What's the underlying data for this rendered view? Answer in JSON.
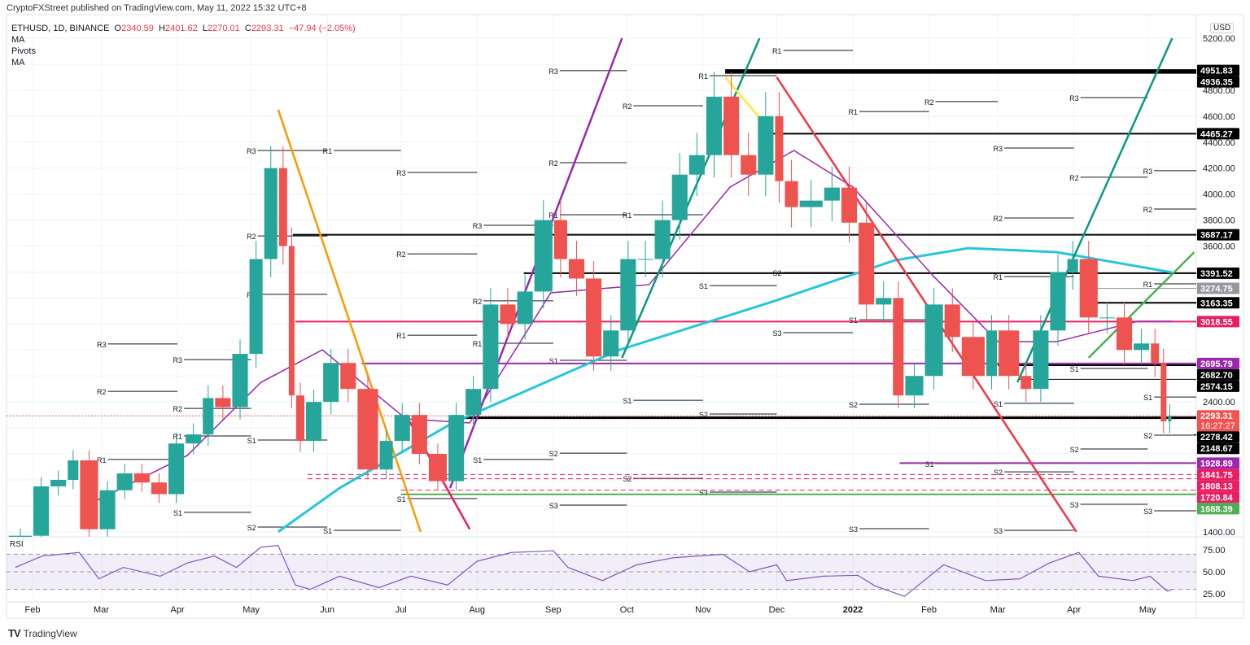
{
  "header": {
    "publisher": "CryptoFXStreet published on TradingView.com, May 11, 2022 15:32 UTC+8"
  },
  "legend": {
    "symbol": "ETHUSD, 1D, BINANCE",
    "open_label": "O",
    "open": "2340.59",
    "high_label": "H",
    "high": "2401.62",
    "low_label": "L",
    "low": "2270.01",
    "close_label": "C",
    "close": "2293.31",
    "change": "−47.94 (−2.05%)",
    "indicators": [
      "MA",
      "Pivots",
      "MA"
    ]
  },
  "axis": {
    "currency": "USD",
    "countdown": "16:27:27"
  },
  "rsi": {
    "title": "RSI",
    "ticks": [
      "75.00",
      "50.00",
      "25.00"
    ],
    "levels": [
      70,
      50,
      30
    ],
    "values": [
      [
        "2021-01-25",
        55
      ],
      [
        "2021-02-05",
        68
      ],
      [
        "2021-02-20",
        72
      ],
      [
        "2021-02-28",
        42
      ],
      [
        "2021-03-10",
        55
      ],
      [
        "2021-03-25",
        45
      ],
      [
        "2021-04-05",
        60
      ],
      [
        "2021-04-16",
        68
      ],
      [
        "2021-04-25",
        55
      ],
      [
        "2021-05-05",
        78
      ],
      [
        "2021-05-12",
        80
      ],
      [
        "2021-05-19",
        35
      ],
      [
        "2021-05-25",
        30
      ],
      [
        "2021-06-06",
        45
      ],
      [
        "2021-06-22",
        32
      ],
      [
        "2021-07-05",
        45
      ],
      [
        "2021-07-20",
        35
      ],
      [
        "2021-08-01",
        62
      ],
      [
        "2021-08-15",
        72
      ],
      [
        "2021-09-01",
        74
      ],
      [
        "2021-09-07",
        55
      ],
      [
        "2021-09-21",
        40
      ],
      [
        "2021-10-05",
        58
      ],
      [
        "2021-10-20",
        66
      ],
      [
        "2021-11-09",
        70
      ],
      [
        "2021-11-20",
        50
      ],
      [
        "2021-12-01",
        58
      ],
      [
        "2021-12-05",
        40
      ],
      [
        "2021-12-20",
        45
      ],
      [
        "2022-01-03",
        46
      ],
      [
        "2022-01-10",
        34
      ],
      [
        "2022-01-22",
        22
      ],
      [
        "2022-02-07",
        58
      ],
      [
        "2022-02-24",
        40
      ],
      [
        "2022-03-10",
        42
      ],
      [
        "2022-03-22",
        60
      ],
      [
        "2022-04-03",
        72
      ],
      [
        "2022-04-11",
        45
      ],
      [
        "2022-04-25",
        40
      ],
      [
        "2022-05-02",
        45
      ],
      [
        "2022-05-09",
        28
      ],
      [
        "2022-05-11",
        30
      ]
    ]
  },
  "footer": {
    "brand": "TradingView"
  },
  "colors": {
    "up": "#26a69a",
    "down": "#ef5350",
    "ma_fast": "#9c27b0",
    "ma_slow": "#26c6da",
    "background": "#ffffff"
  },
  "chart_data": {
    "type": "line",
    "title": "",
    "ylim": [
      1400,
      5200
    ],
    "y_ticks": [
      "5200.00",
      "4800.00",
      "4600.00",
      "4400.00",
      "4200.00",
      "4000.00",
      "3800.00",
      "3600.00",
      "2400.00",
      "1400.00"
    ],
    "x_ticks": [
      [
        "Feb",
        "2021-02-01"
      ],
      [
        "Mar",
        "2021-03-01"
      ],
      [
        "Apr",
        "2021-04-01"
      ],
      [
        "May",
        "2021-05-01"
      ],
      [
        "Jun",
        "2021-06-01"
      ],
      [
        "Jul",
        "2021-07-01"
      ],
      [
        "Aug",
        "2021-08-01"
      ],
      [
        "Sep",
        "2021-09-01"
      ],
      [
        "Oct",
        "2021-10-01"
      ],
      [
        "Nov",
        "2021-11-01"
      ],
      [
        "Dec",
        "2021-12-01"
      ],
      [
        "2022",
        "2022-01-01"
      ],
      [
        "Feb",
        "2022-02-01"
      ],
      [
        "Mar",
        "2022-03-01"
      ],
      [
        "Apr",
        "2022-04-01"
      ],
      [
        "May",
        "2022-05-01"
      ]
    ],
    "grid": true,
    "price": [
      [
        "2021-01-22",
        1250
      ],
      [
        "2021-02-01",
        1370
      ],
      [
        "2021-02-08",
        1750
      ],
      [
        "2021-02-15",
        1800
      ],
      [
        "2021-02-20",
        1950
      ],
      [
        "2021-02-28",
        1420
      ],
      [
        "2021-03-07",
        1720
      ],
      [
        "2021-03-14",
        1850
      ],
      [
        "2021-03-21",
        1780
      ],
      [
        "2021-03-28",
        1690
      ],
      [
        "2021-04-04",
        2080
      ],
      [
        "2021-04-11",
        2150
      ],
      [
        "2021-04-16",
        2430
      ],
      [
        "2021-04-23",
        2360
      ],
      [
        "2021-04-30",
        2770
      ],
      [
        "2021-05-06",
        3500
      ],
      [
        "2021-05-12",
        4200
      ],
      [
        "2021-05-16",
        3600
      ],
      [
        "2021-05-19",
        2450
      ],
      [
        "2021-05-23",
        2100
      ],
      [
        "2021-05-30",
        2400
      ],
      [
        "2021-06-06",
        2700
      ],
      [
        "2021-06-13",
        2500
      ],
      [
        "2021-06-22",
        1880
      ],
      [
        "2021-06-28",
        2100
      ],
      [
        "2021-07-05",
        2300
      ],
      [
        "2021-07-12",
        2000
      ],
      [
        "2021-07-20",
        1790
      ],
      [
        "2021-07-27",
        2300
      ],
      [
        "2021-08-03",
        2500
      ],
      [
        "2021-08-10",
        3150
      ],
      [
        "2021-08-17",
        3000
      ],
      [
        "2021-08-24",
        3250
      ],
      [
        "2021-09-01",
        3800
      ],
      [
        "2021-09-07",
        3500
      ],
      [
        "2021-09-14",
        3350
      ],
      [
        "2021-09-21",
        2750
      ],
      [
        "2021-09-28",
        2950
      ],
      [
        "2021-10-05",
        3500
      ],
      [
        "2021-10-12",
        3500
      ],
      [
        "2021-10-19",
        3800
      ],
      [
        "2021-10-26",
        4150
      ],
      [
        "2021-11-02",
        4300
      ],
      [
        "2021-11-09",
        4750
      ],
      [
        "2021-11-16",
        4300
      ],
      [
        "2021-11-23",
        4150
      ],
      [
        "2021-11-30",
        4600
      ],
      [
        "2021-12-04",
        4100
      ],
      [
        "2021-12-10",
        3900
      ],
      [
        "2021-12-20",
        3950
      ],
      [
        "2021-12-27",
        4050
      ],
      [
        "2022-01-03",
        3780
      ],
      [
        "2022-01-10",
        3150
      ],
      [
        "2022-01-17",
        3200
      ],
      [
        "2022-01-22",
        2450
      ],
      [
        "2022-01-30",
        2600
      ],
      [
        "2022-02-07",
        3150
      ],
      [
        "2022-02-14",
        2900
      ],
      [
        "2022-02-24",
        2600
      ],
      [
        "2022-03-01",
        2950
      ],
      [
        "2022-03-10",
        2600
      ],
      [
        "2022-03-15",
        2500
      ],
      [
        "2022-03-22",
        2950
      ],
      [
        "2022-03-29",
        3400
      ],
      [
        "2022-04-03",
        3500
      ],
      [
        "2022-04-11",
        3050
      ],
      [
        "2022-04-18",
        3050
      ],
      [
        "2022-04-25",
        2800
      ],
      [
        "2022-05-02",
        2850
      ],
      [
        "2022-05-06",
        2700
      ],
      [
        "2022-05-09",
        2250
      ],
      [
        "2022-05-11",
        2293.31
      ]
    ],
    "ma_slow": [
      [
        "2021-05-12",
        1400
      ],
      [
        "2021-06-06",
        1737
      ],
      [
        "2021-07-22",
        2238
      ],
      [
        "2021-09-28",
        2801
      ],
      [
        "2021-11-30",
        3176
      ],
      [
        "2022-01-18",
        3490
      ],
      [
        "2022-02-17",
        3584
      ],
      [
        "2022-03-25",
        3553
      ],
      [
        "2022-05-11",
        3397
      ]
    ],
    "ma_fast": [
      [
        "2021-02-24",
        1612
      ],
      [
        "2021-04-05",
        1988
      ],
      [
        "2021-05-05",
        2551
      ],
      [
        "2021-05-30",
        2801
      ],
      [
        "2021-07-03",
        2270
      ],
      [
        "2021-07-29",
        2238
      ],
      [
        "2021-08-31",
        3240
      ],
      [
        "2021-10-10",
        3303
      ],
      [
        "2021-11-12",
        4054
      ],
      [
        "2021-12-08",
        4336
      ],
      [
        "2022-01-01",
        4054
      ],
      [
        "2022-02-03",
        3365
      ],
      [
        "2022-03-01",
        2864
      ],
      [
        "2022-03-25",
        2864
      ],
      [
        "2022-04-27",
        3021
      ],
      [
        "2022-05-11",
        3021
      ]
    ],
    "levels": [
      {
        "price": 4951.83,
        "label": "4951.83",
        "color": "#000000",
        "from": "2021-11-10",
        "style": "solid",
        "weight": 3
      },
      {
        "price": 4936.35,
        "label": "4936.35",
        "color": "#000000",
        "from": "2021-11-10",
        "style": "solid",
        "weight": 3
      },
      {
        "price": 4465.27,
        "label": "4465.27",
        "color": "#000000",
        "from": "2021-11-24",
        "style": "solid",
        "weight": 2
      },
      {
        "price": 3687.17,
        "label": "3687.17",
        "color": "#000000",
        "from": "2021-05-18",
        "style": "solid",
        "weight": 2
      },
      {
        "price": 3391.52,
        "label": "3391.52",
        "color": "#000000",
        "from": "2021-08-20",
        "style": "solid",
        "weight": 2
      },
      {
        "price": 3274.75,
        "label": "3274.75",
        "color": "#9598a1",
        "from": "2022-04-05",
        "style": "solid",
        "weight": 1
      },
      {
        "price": 3163.35,
        "label": "3163.35",
        "color": "#000000",
        "from": "2022-04-05",
        "style": "solid",
        "weight": 2
      },
      {
        "price": 3018.55,
        "label": "3018.55",
        "color": "#e91e63",
        "from": "2021-05-19",
        "style": "solid",
        "weight": 2
      },
      {
        "price": 2695.79,
        "label": "2695.79",
        "color": "#9c27b0",
        "from": "2021-06-15",
        "style": "solid",
        "weight": 2
      },
      {
        "price": 2682.7,
        "label": "2682.70",
        "color": "#000000",
        "from": "2022-03-01",
        "style": "solid",
        "weight": 2
      },
      {
        "price": 2574.15,
        "label": "2574.15",
        "color": "#000000",
        "from": "2022-03-10",
        "style": "solid",
        "weight": 1
      },
      {
        "price": 2293.31,
        "label": "2293.31",
        "color": "#f05350",
        "from": "2021-01-20",
        "style": "dotted",
        "weight": 1
      },
      {
        "price": 2278.42,
        "label": "2278.42",
        "color": "#000000",
        "from": "2021-07-26",
        "style": "solid",
        "weight": 3
      },
      {
        "price": 2148.67,
        "label": "2148.67",
        "color": "#000000",
        "from": "2022-05-20",
        "style": "solid",
        "weight": 1
      },
      {
        "price": 1928.89,
        "label": "1928.89",
        "color": "#9c27b0",
        "from": "2022-01-20",
        "style": "solid",
        "weight": 2
      },
      {
        "price": 1841.75,
        "label": "1841.75",
        "color": "#e91e63",
        "from": "2021-05-24",
        "style": "dashed",
        "weight": 1
      },
      {
        "price": 1808.13,
        "label": "1808.13",
        "color": "#e91e63",
        "from": "2021-05-24",
        "style": "dashed",
        "weight": 1
      },
      {
        "price": 1720.84,
        "label": "1720.84",
        "color": "#e91e63",
        "from": "2021-07-01",
        "style": "dashed",
        "weight": 1
      },
      {
        "price": 1688.39,
        "label": "1688.39",
        "color": "#4caf50",
        "from": "2021-07-01",
        "style": "solid",
        "weight": 2
      }
    ],
    "trendlines": [
      {
        "color": "#ff9800",
        "from": [
          "2021-05-12",
          4650
        ],
        "to": [
          "2021-07-09",
          1400
        ]
      },
      {
        "color": "#f23645",
        "from": [
          "2021-12-01",
          4900
        ],
        "to": [
          "2022-04-02",
          1400
        ]
      },
      {
        "color": "#089981",
        "from": [
          "2021-09-29",
          2739
        ],
        "to": [
          "2021-11-24",
          5200
        ]
      },
      {
        "color": "#089981",
        "from": [
          "2022-03-09",
          2551
        ],
        "to": [
          "2022-05-11",
          5200
        ]
      },
      {
        "color": "#9c27b0",
        "from": [
          "2021-07-21",
          1737
        ],
        "to": [
          "2021-09-29",
          5200
        ]
      },
      {
        "color": "#e91e63",
        "from": [
          "2021-07-03",
          2300
        ],
        "to": [
          "2021-07-29",
          1420
        ]
      },
      {
        "color": "#4caf50",
        "from": [
          "2022-04-07",
          2740
        ],
        "to": [
          "2022-05-20",
          3553
        ]
      },
      {
        "color": "#ffeb3b",
        "from": [
          "2021-11-10",
          4900
        ],
        "to": [
          "2021-11-28",
          4500
        ]
      }
    ],
    "pivots": [
      [
        "R3",
        "2021-09",
        4950
      ],
      [
        "R2",
        "2021-10",
        4680
      ],
      [
        "R1",
        "2021-11",
        4912
      ],
      [
        "R1",
        "2021-12",
        5106
      ],
      [
        "R1",
        "2022-01",
        4636
      ],
      [
        "R2",
        "2022-02",
        4712
      ],
      [
        "R3",
        "2022-04",
        4743
      ],
      [
        "R3",
        "2021-05",
        4336
      ],
      [
        "R1",
        "2021-06",
        4336
      ],
      [
        "R3",
        "2021-07",
        4167
      ],
      [
        "R2",
        "2021-09",
        4242
      ],
      [
        "R3",
        "2022-03",
        4355
      ],
      [
        "R3",
        "2022-05",
        4180
      ],
      [
        "R2",
        "2022-04",
        4130
      ],
      [
        "R2",
        "2022-03",
        3816
      ],
      [
        "R2",
        "2022-05",
        3885
      ],
      [
        "R2",
        "2021-05",
        3678
      ],
      [
        "R1",
        "2021-09",
        3841
      ],
      [
        "R1",
        "2021-10",
        3841
      ],
      [
        "R3",
        "2021-08",
        3760
      ],
      [
        "R2",
        "2021-07",
        3540
      ],
      [
        "R1",
        "2021-05",
        3228
      ],
      [
        "R1",
        "2022-03",
        3365
      ],
      [
        "R1",
        "2022-05",
        3309
      ],
      [
        "R2",
        "2021-08",
        3178
      ],
      [
        "R1",
        "2021-07",
        2914
      ],
      [
        "R3",
        "2021-03",
        2846
      ],
      [
        "R3",
        "2021-04",
        2726
      ],
      [
        "R1",
        "2021-08",
        2852
      ],
      [
        "S1",
        "2021-11",
        3296
      ],
      [
        "S2",
        "2021-12",
        3397
      ],
      [
        "S1",
        "2022-01",
        3033
      ],
      [
        "S3",
        "2021-12",
        2933
      ],
      [
        "S1",
        "2021-09",
        2720
      ],
      [
        "S1",
        "2021-10",
        2413
      ],
      [
        "R2",
        "2021-03",
        2482
      ],
      [
        "R2",
        "2021-04",
        2350
      ],
      [
        "S2",
        "2022-01",
        2382
      ],
      [
        "S1",
        "2022-03",
        2389
      ],
      [
        "S1",
        "2022-04",
        2658
      ],
      [
        "S1",
        "2022-05",
        2438
      ],
      [
        "S2",
        "2021-11",
        2307
      ],
      [
        "S1",
        "2021-05",
        2107
      ],
      [
        "R1",
        "2021-03",
        1957
      ],
      [
        "R1",
        "2021-04",
        2138
      ],
      [
        "S2",
        "2021-09",
        2006
      ],
      [
        "S1",
        "2021-08",
        1957
      ],
      [
        "S2",
        "2022-04",
        2038
      ],
      [
        "S2",
        "2022-05",
        2144
      ],
      [
        "S1",
        "2022-02",
        1925
      ],
      [
        "S2",
        "2022-03",
        1862
      ],
      [
        "S2",
        "2021-10",
        1812
      ],
      [
        "S3",
        "2021-11",
        1706
      ],
      [
        "S1",
        "2021-07",
        1656
      ],
      [
        "S1",
        "2021-04",
        1550
      ],
      [
        "S3",
        "2021-09",
        1606
      ],
      [
        "S3",
        "2022-04",
        1612
      ],
      [
        "S3",
        "2022-05",
        1562
      ],
      [
        "S2",
        "2021-05",
        1437
      ],
      [
        "S1",
        "2021-06",
        1412
      ],
      [
        "S3",
        "2022-01",
        1424
      ],
      [
        "S3",
        "2022-03",
        1412
      ]
    ]
  }
}
